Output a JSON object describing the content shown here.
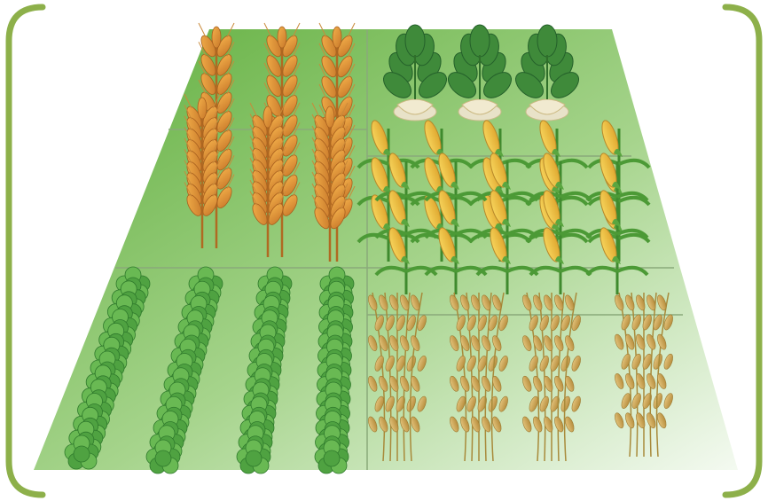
{
  "figure": {
    "title": "",
    "frame_color": "#8db04a",
    "field_colors": {
      "dark": "#5fae3c",
      "mid": "#a6d48c",
      "light": "#eef7ea",
      "grid_line": "#8aa97a"
    },
    "plots": [
      {
        "id": "wheat-plot",
        "crop": "wheat",
        "icon": "wheat-icon"
      },
      {
        "id": "turnip-plot",
        "crop": "turnip",
        "icon": "turnip-icon"
      },
      {
        "id": "corn-plot",
        "crop": "corn",
        "icon": "corn-icon"
      },
      {
        "id": "soybean-plot",
        "crop": "soybean",
        "icon": "soybean-icon"
      },
      {
        "id": "rice-plot",
        "crop": "rice",
        "icon": "rice-icon"
      }
    ]
  }
}
